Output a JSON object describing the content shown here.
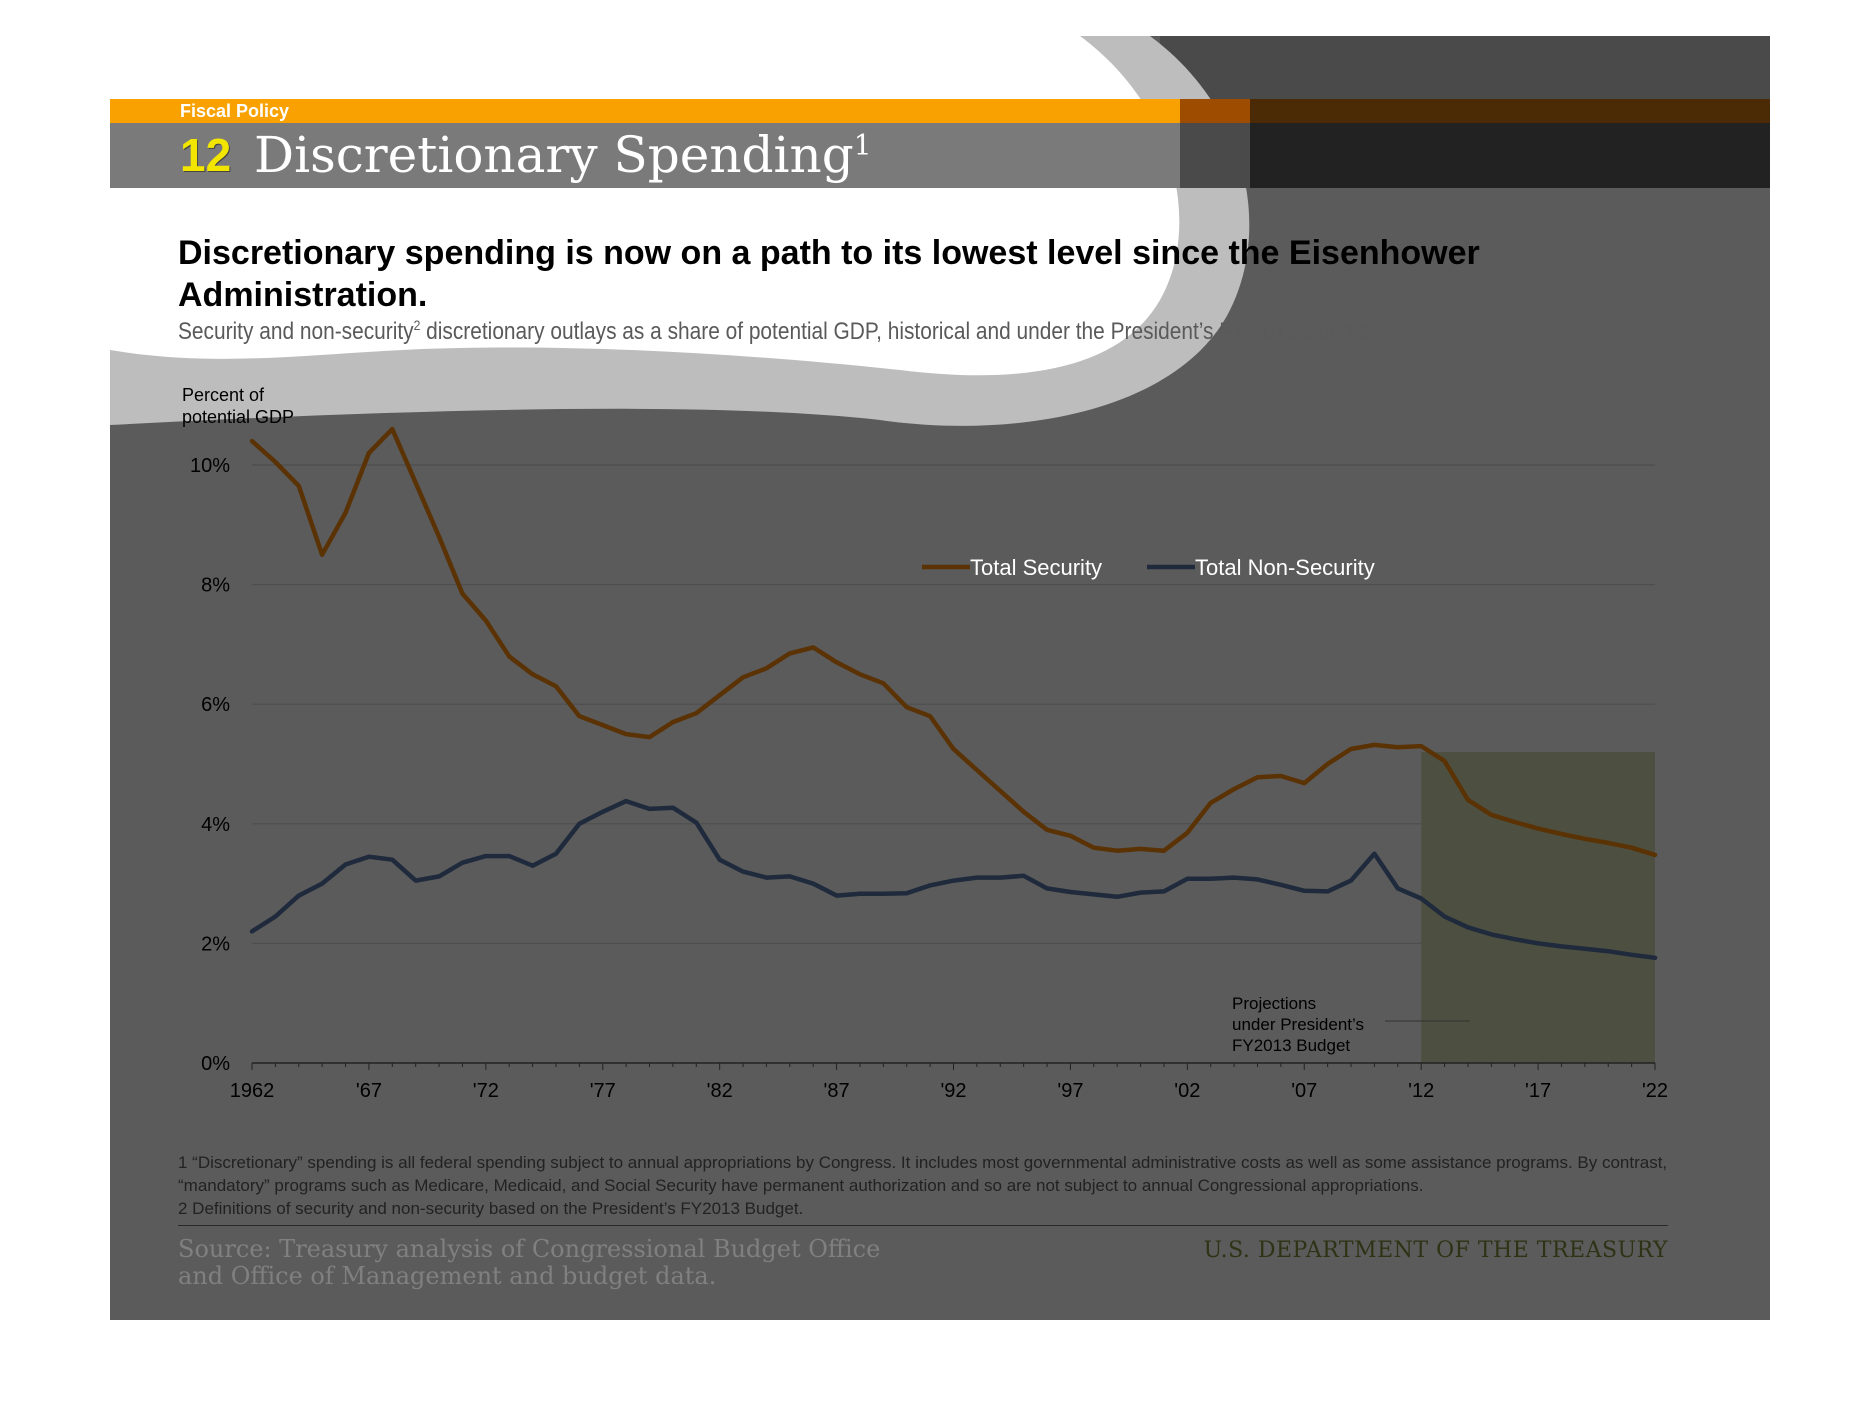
{
  "header": {
    "section_label": "Fiscal Policy",
    "slide_number": "12",
    "slide_title": "Discretionary Spending",
    "slide_title_note": "1"
  },
  "headline": "Discretionary spending is now on a path to its lowest level since the Eisenhower Administration.",
  "subtitle": {
    "part1": "Security and non-security",
    "note": "2",
    "part2": " discretionary outlays as a share of potential GDP, historical and under the President’s FY 2013 Budget"
  },
  "colors": {
    "security": "#5a3204",
    "non_security": "#1f2a3c",
    "projection_shade": "#4d5040",
    "background": "#5b5b5b",
    "header_orange": "#f8a100"
  },
  "chart_data": {
    "type": "line",
    "title": "",
    "ylabel": "Percent of potential GDP",
    "xlabel": "",
    "ylim": [
      0,
      10
    ],
    "yticks": [
      "0%",
      "2%",
      "4%",
      "6%",
      "8%",
      "10%"
    ],
    "x_tick_labels": [
      "1962",
      "'67",
      "'72",
      "'77",
      "'82",
      "'87",
      "'92",
      "'97",
      "'02",
      "'07",
      "'12",
      "'17",
      "'22"
    ],
    "x": [
      1962,
      1963,
      1964,
      1965,
      1966,
      1967,
      1968,
      1969,
      1970,
      1971,
      1972,
      1973,
      1974,
      1975,
      1976,
      1977,
      1978,
      1979,
      1980,
      1981,
      1982,
      1983,
      1984,
      1985,
      1986,
      1987,
      1988,
      1989,
      1990,
      1991,
      1992,
      1993,
      1994,
      1995,
      1996,
      1997,
      1998,
      1999,
      2000,
      2001,
      2002,
      2003,
      2004,
      2005,
      2006,
      2007,
      2008,
      2009,
      2010,
      2011,
      2012,
      2013,
      2014,
      2015,
      2016,
      2017,
      2018,
      2019,
      2020,
      2021,
      2022
    ],
    "legend_position": "top-right",
    "series": [
      {
        "name": "Total Security",
        "values": [
          10.4,
          10.05,
          9.65,
          8.5,
          9.2,
          10.2,
          10.6,
          9.7,
          8.8,
          7.85,
          7.4,
          6.8,
          6.5,
          6.3,
          5.8,
          5.65,
          5.5,
          5.45,
          5.7,
          5.85,
          6.15,
          6.45,
          6.6,
          6.85,
          6.95,
          6.7,
          6.5,
          6.35,
          5.95,
          5.8,
          5.25,
          4.9,
          4.55,
          4.2,
          3.9,
          3.8,
          3.6,
          3.55,
          3.58,
          3.55,
          3.85,
          4.35,
          4.58,
          4.78,
          4.8,
          4.68,
          5.0,
          5.25,
          5.32,
          5.28,
          5.3,
          5.05,
          4.4,
          4.15,
          4.03,
          3.92,
          3.83,
          3.75,
          3.68,
          3.6,
          3.48
        ]
      },
      {
        "name": "Total Non-Security",
        "values": [
          2.2,
          2.45,
          2.8,
          3.0,
          3.32,
          3.45,
          3.4,
          3.05,
          3.12,
          3.35,
          3.46,
          3.46,
          3.3,
          3.5,
          4.0,
          4.2,
          4.38,
          4.25,
          4.27,
          4.02,
          3.4,
          3.2,
          3.1,
          3.12,
          3.0,
          2.8,
          2.83,
          2.83,
          2.84,
          2.97,
          3.05,
          3.1,
          3.1,
          3.13,
          2.92,
          2.86,
          2.82,
          2.78,
          2.85,
          2.87,
          3.08,
          3.08,
          3.1,
          3.07,
          2.98,
          2.88,
          2.87,
          3.05,
          3.5,
          2.92,
          2.75,
          2.45,
          2.27,
          2.15,
          2.07,
          2.0,
          1.95,
          1.91,
          1.87,
          1.81,
          1.76
        ]
      }
    ],
    "projection_start": 2012,
    "annotation": "Projections\nunder President’s\nFY2013 Budget"
  },
  "annotation_lines": [
    "Projections",
    "under President’s",
    "FY2013 Budget"
  ],
  "footnotes": [
    "1 “Discretionary” spending is all federal spending subject to annual appropriations by Congress. It includes most governmental administrative costs as well as some assistance programs. By contrast, “mandatory” programs such as Medicare, Medicaid, and Social Security have permanent authorization and so are not subject to annual Congressional appropriations.",
    "2 Definitions of security and non-security based on the President’s FY2013 Budget."
  ],
  "source_lines": [
    "Source: Treasury analysis of Congressional Budget Office",
    "and Office of Management and budget data."
  ],
  "agency": "U.S. DEPARTMENT OF THE TREASURY"
}
